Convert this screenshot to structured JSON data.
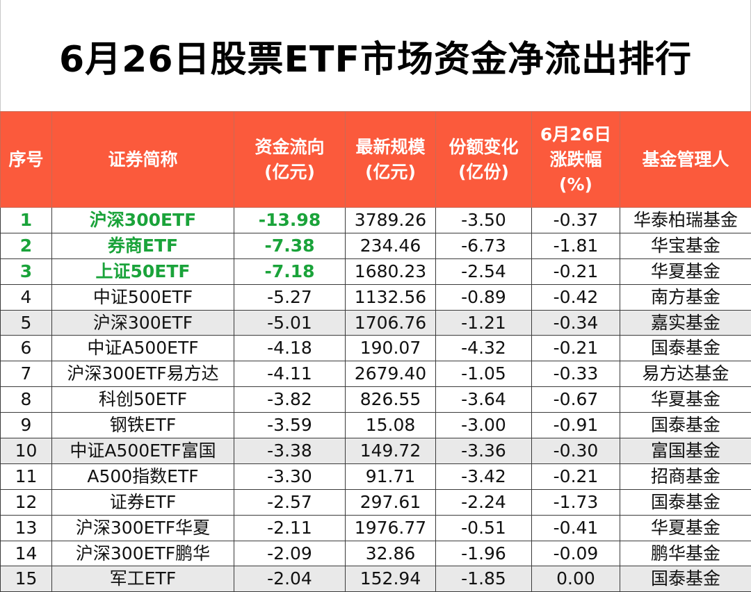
{
  "title": "6月26日股票ETF市场资金净流出排行",
  "headers": {
    "rank": "序号",
    "name": "证券简称",
    "flow_l1": "资金流向",
    "flow_l2": "(亿元)",
    "size_l1": "最新规模",
    "size_l2": "(亿元)",
    "share_l1": "份额变化",
    "share_l2": "(亿份)",
    "chg_l1": "6月26日",
    "chg_l2": "涨跌幅",
    "chg_l3": "(%)",
    "mgr": "基金管理人"
  },
  "rows": [
    {
      "rank": "1",
      "name": "沪深300ETF",
      "flow": "-13.98",
      "size": "3789.26",
      "share": "-3.50",
      "chg": "-0.37",
      "mgr": "华泰柏瑞基金"
    },
    {
      "rank": "2",
      "name": "券商ETF",
      "flow": "-7.38",
      "size": "234.46",
      "share": "-6.73",
      "chg": "-1.81",
      "mgr": "华宝基金"
    },
    {
      "rank": "3",
      "name": "上证50ETF",
      "flow": "-7.18",
      "size": "1680.23",
      "share": "-2.54",
      "chg": "-0.21",
      "mgr": "华夏基金"
    },
    {
      "rank": "4",
      "name": "中证500ETF",
      "flow": "-5.27",
      "size": "1132.56",
      "share": "-0.89",
      "chg": "-0.42",
      "mgr": "南方基金"
    },
    {
      "rank": "5",
      "name": "沪深300ETF",
      "flow": "-5.01",
      "size": "1706.76",
      "share": "-1.21",
      "chg": "-0.34",
      "mgr": "嘉实基金"
    },
    {
      "rank": "6",
      "name": "中证A500ETF",
      "flow": "-4.18",
      "size": "190.07",
      "share": "-4.32",
      "chg": "-0.21",
      "mgr": "国泰基金"
    },
    {
      "rank": "7",
      "name": "沪深300ETF易方达",
      "flow": "-4.11",
      "size": "2679.40",
      "share": "-1.05",
      "chg": "-0.33",
      "mgr": "易方达基金"
    },
    {
      "rank": "8",
      "name": "科创50ETF",
      "flow": "-3.82",
      "size": "826.55",
      "share": "-3.64",
      "chg": "-0.67",
      "mgr": "华夏基金"
    },
    {
      "rank": "9",
      "name": "钢铁ETF",
      "flow": "-3.59",
      "size": "15.08",
      "share": "-3.00",
      "chg": "-0.91",
      "mgr": "国泰基金"
    },
    {
      "rank": "10",
      "name": "中证A500ETF富国",
      "flow": "-3.38",
      "size": "149.72",
      "share": "-3.36",
      "chg": "-0.30",
      "mgr": "富国基金"
    },
    {
      "rank": "11",
      "name": "A500指数ETF",
      "flow": "-3.30",
      "size": "91.71",
      "share": "-3.42",
      "chg": "-0.21",
      "mgr": "招商基金"
    },
    {
      "rank": "12",
      "name": "证券ETF",
      "flow": "-2.57",
      "size": "297.61",
      "share": "-2.24",
      "chg": "-1.73",
      "mgr": "国泰基金"
    },
    {
      "rank": "13",
      "name": "沪深300ETF华夏",
      "flow": "-2.11",
      "size": "1976.77",
      "share": "-0.51",
      "chg": "-0.41",
      "mgr": "华夏基金"
    },
    {
      "rank": "14",
      "name": "沪深300ETF鹏华",
      "flow": "-2.09",
      "size": "32.86",
      "share": "-1.96",
      "chg": "-0.09",
      "mgr": "鹏华基金"
    },
    {
      "rank": "15",
      "name": "军工ETF",
      "flow": "-2.04",
      "size": "152.94",
      "share": "-1.85",
      "chg": "0.00",
      "mgr": "国泰基金"
    }
  ],
  "colors": {
    "header_bg": "#fb5a3c",
    "header_text": "#ffffff",
    "top_rows_text": "#1aa33a",
    "shaded_row_bg": "#e9e9e9"
  }
}
